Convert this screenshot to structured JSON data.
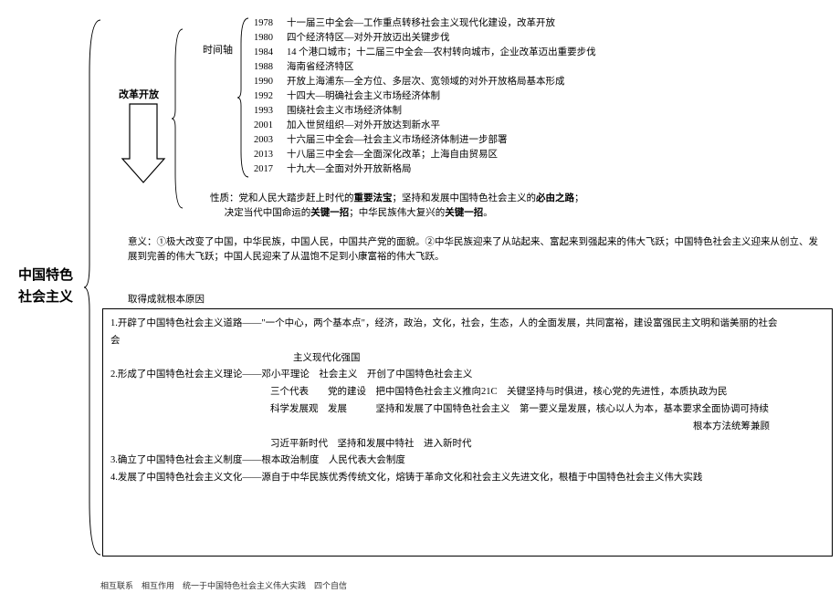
{
  "title_line1": "中国特色",
  "title_line2": "社会主义",
  "section_reform": "改革开放",
  "timeline_label": "时间轴",
  "timeline": [
    {
      "year": "1978",
      "text": "十一届三中全会—工作重点转移社会主义现代化建设，改革开放"
    },
    {
      "year": "1980",
      "text": "四个经济特区—对外开放迈出关键步伐"
    },
    {
      "year": "1984",
      "text": "14 个港口城市；十二届三中全会—农村转向城市，企业改革迈出重要步伐"
    },
    {
      "year": "1988",
      "text": "海南省经济特区"
    },
    {
      "year": "1990",
      "text": "开放上海浦东—全方位、多层次、宽领域的对外开放格局基本形成"
    },
    {
      "year": "1992",
      "text": "十四大—明确社会主义市场经济体制"
    },
    {
      "year": "1993",
      "text": "围绕社会主义市场经济体制"
    },
    {
      "year": "2001",
      "text": "加入世贸组织—对外开放达到新水平"
    },
    {
      "year": "2003",
      "text": "十六届三中全会—社会主义市场经济体制进一步部署"
    },
    {
      "year": "2013",
      "text": "十八届三中全会—全面深化改革；上海自由贸易区"
    },
    {
      "year": "2017",
      "text": "十九大—全面对外开放新格局"
    }
  ],
  "nature_prefix": "性质：党和人民大踏步赶上时代的",
  "nature_b1": "重要法宝",
  "nature_mid1": "；坚持和发展中国特色社会主义的",
  "nature_b2": "必由之路",
  "nature_mid2": "；",
  "nature_line2_prefix": "决定当代中国命运的",
  "nature_b3": "关键一招",
  "nature_mid3": "；中华民族伟大复兴的",
  "nature_b4": "关键一招",
  "nature_suffix": "。",
  "meaning": "意义：①极大改变了中国，中华民族，中国人民，中国共产党的面貌。②中华民族迎来了从站起来、富起来到强起来的伟大飞跃；中国特色社会主义迎来从创立、发展到完善的伟大飞跃；中国人民迎来了从温饱不足到小康富裕的伟大飞跃。",
  "reason_label": "取得成就根本原因",
  "box": {
    "p1": "1.开辟了中国特色社会主义道路——\"一个中心，两个基本点\"，经济，政治，文化，社会，生态，人的全面发展，共同富裕，建设富强民主文明和谐美丽的社会",
    "p1b": "主义现代化强国",
    "p2": "2.形成了中国特色社会主义理论——邓小平理论　社会主义　开创了中国特色社会主义",
    "p2b": "三个代表　　党的建设　把中国特色社会主义推向21C　关键坚持与时俱进，核心党的先进性，本质执政为民",
    "p2c": "科学发展观　发展　　　坚持和发展了中国特色社会主义　第一要义是发展，核心以人为本，基本要求全面协调可持续",
    "p2d_right": "根本方法统筹兼顾",
    "p2e": "习近平新时代　坚持和发展中特社　进入新时代",
    "p3": "3.确立了中国特色社会主义制度——根本政治制度　人民代表大会制度",
    "p4": "4.发展了中国特色社会主义文化——源自于中华民族优秀传统文化，熔铸于革命文化和社会主义先进文化，根植于中国特色社会主义伟大实践"
  },
  "footer": "相互联系　相互作用　统一于中国特色社会主义伟大实践　四个自信"
}
